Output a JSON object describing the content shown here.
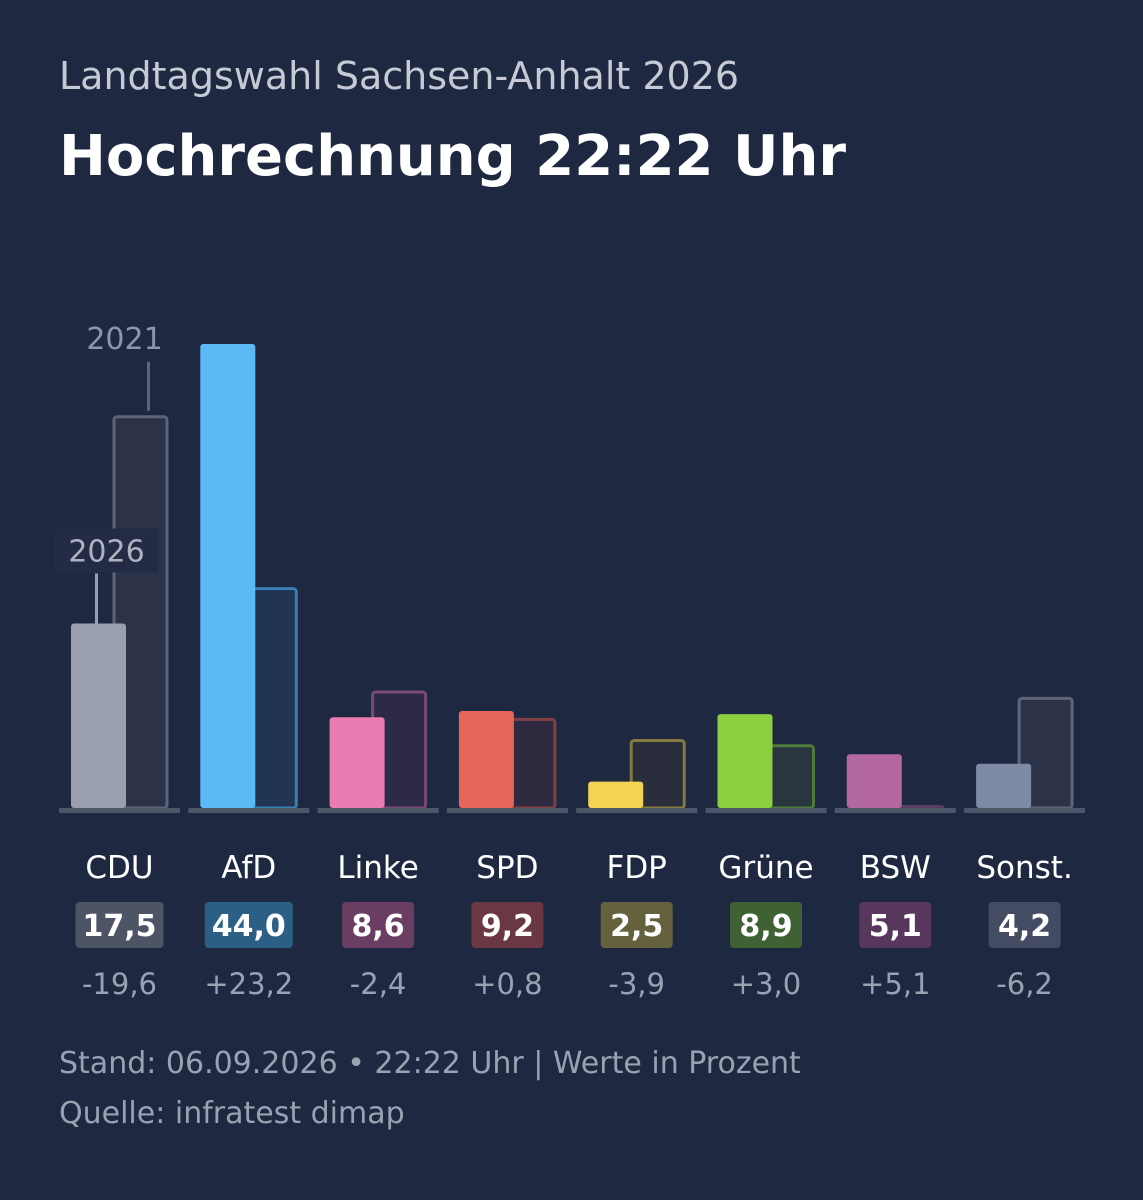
{
  "header": {
    "subtitle": "Landtagswahl Sachsen-Anhalt 2026",
    "title": "Hochrechnung 22:22 Uhr"
  },
  "chart_data": {
    "type": "bar",
    "title": "Hochrechnung 22:22 Uhr",
    "subtitle": "Landtagswahl Sachsen-Anhalt 2026",
    "categories": [
      "CDU",
      "AfD",
      "Linke",
      "SPD",
      "FDP",
      "Grüne",
      "BSW",
      "Sonst."
    ],
    "series": [
      {
        "name": "2026",
        "values": [
          17.5,
          44.0,
          8.6,
          9.2,
          2.5,
          8.9,
          5.1,
          4.2
        ],
        "labels": [
          "17,5",
          "44,0",
          "8,6",
          "9,2",
          "2,5",
          "8,9",
          "5,1",
          "4,2"
        ]
      },
      {
        "name": "2021",
        "values": [
          37.1,
          20.8,
          11.0,
          8.4,
          6.4,
          5.9,
          0.0,
          10.4
        ]
      }
    ],
    "differences": [
      "-19,6",
      "+23,2",
      "-2,4",
      "+0,8",
      "-3,9",
      "+3,0",
      "+5,1",
      "-6,2"
    ],
    "colors": {
      "current": [
        "#9a9fad",
        "#5bb9f5",
        "#e87cb0",
        "#e8655c",
        "#f2d353",
        "#8ccf3e",
        "#b3689f",
        "#7e8aa4"
      ],
      "badge": [
        "#4d5465",
        "#2c5f86",
        "#6a3e62",
        "#6a3743",
        "#65613f",
        "#3f6234",
        "#58375d",
        "#434c62"
      ],
      "previous_fill": [
        "#2c3349",
        "#213552",
        "#2d2a48",
        "#2f2a40",
        "#2a2e3c",
        "#29363f",
        "#2a2a42",
        "#2c3349"
      ],
      "previous_stroke": [
        "#5e6578",
        "#3a7eb3",
        "#7a4a72",
        "#7e4245",
        "#857a3e",
        "#4e7a3a",
        "#5a3e62",
        "#5e6578"
      ]
    },
    "ylim": [
      0,
      44
    ],
    "grid": false,
    "legend": "annotations on first category"
  },
  "footer": {
    "stand": "Stand: 06.09.2026 • 22:22 Uhr | Werte in Prozent",
    "quelle": "Quelle: infratest dimap"
  }
}
